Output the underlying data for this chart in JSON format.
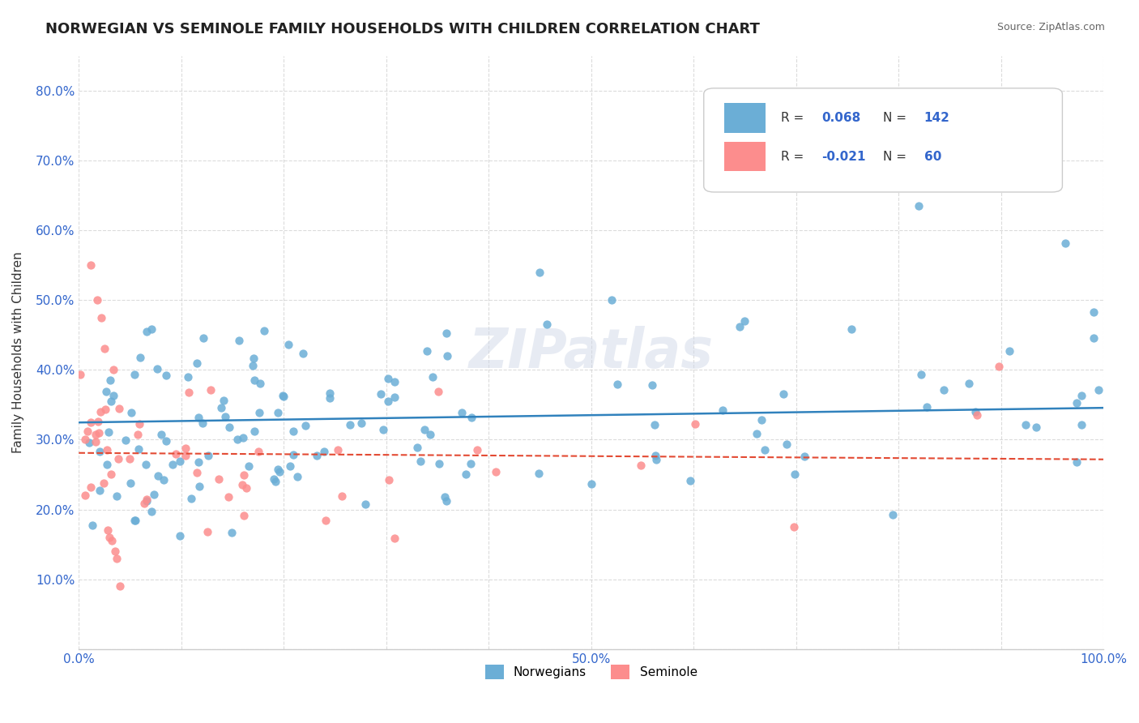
{
  "title": "NORWEGIAN VS SEMINOLE FAMILY HOUSEHOLDS WITH CHILDREN CORRELATION CHART",
  "source": "Source: ZipAtlas.com",
  "ylabel": "Family Households with Children",
  "xmin": 0.0,
  "xmax": 1.0,
  "ymin": 0.0,
  "ymax": 0.85,
  "norwegian_color": "#6baed6",
  "seminole_color": "#fc8d8d",
  "norwegian_R": 0.068,
  "norwegian_N": 142,
  "seminole_R": -0.021,
  "seminole_N": 60,
  "trend_norwegian_color": "#3182bd",
  "trend_seminole_color": "#e34a33"
}
